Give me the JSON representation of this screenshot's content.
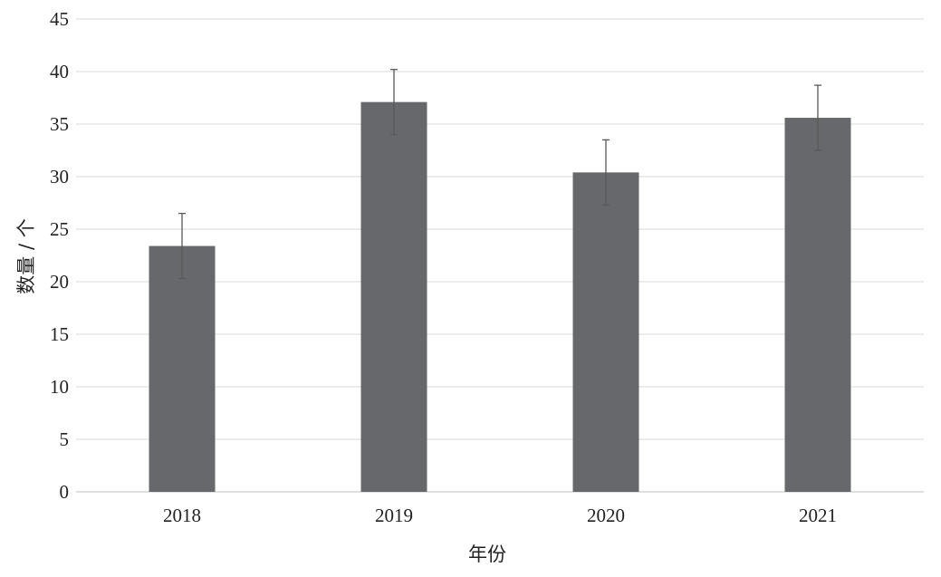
{
  "chart_data": {
    "type": "bar",
    "categories": [
      "2018",
      "2019",
      "2020",
      "2021"
    ],
    "values": [
      23.4,
      37.1,
      30.4,
      35.6
    ],
    "error_high": [
      26.5,
      40.2,
      33.5,
      38.7
    ],
    "error_low": [
      20.3,
      34.0,
      27.3,
      32.5
    ],
    "xlabel": "年份",
    "ylabel": "数量 / 个",
    "ylim": [
      0,
      45
    ],
    "yticks": [
      0,
      5,
      10,
      15,
      20,
      25,
      30,
      35,
      40,
      45
    ],
    "ytick_labels": [
      "0",
      "5",
      "10",
      "15",
      "20",
      "25",
      "30",
      "35",
      "40",
      "45"
    ],
    "grid": true,
    "legend": "none",
    "bar_color": "#67686c",
    "error_bar_color": "#595959"
  }
}
